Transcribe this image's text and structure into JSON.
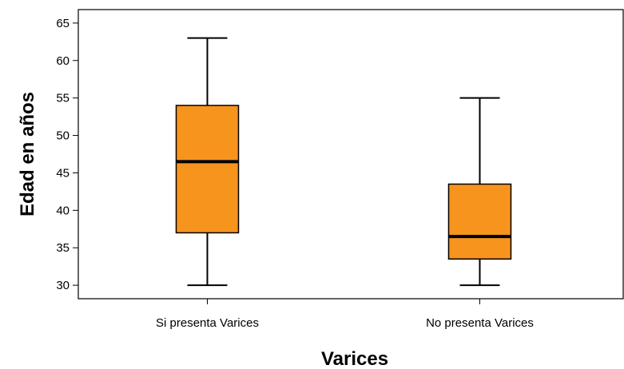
{
  "chart_data": {
    "type": "boxplot",
    "xlabel": "Varices",
    "ylabel": "Edad en años",
    "ylim": [
      28.2,
      66.8
    ],
    "yticks": [
      30,
      35,
      40,
      45,
      50,
      55,
      60,
      65
    ],
    "grid": false,
    "box_color": "#F7941D",
    "categories": [
      "Si presenta Varices",
      "No presenta Varices"
    ],
    "boxes": [
      {
        "category": "Si presenta Varices",
        "min": 30,
        "q1": 37,
        "median": 46.5,
        "q3": 54,
        "max": 63
      },
      {
        "category": "No presenta Varices",
        "min": 30,
        "q1": 33.5,
        "median": 36.5,
        "q3": 43.5,
        "max": 55
      }
    ]
  }
}
